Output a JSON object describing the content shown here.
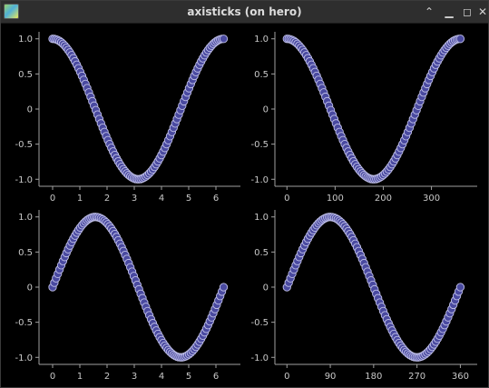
{
  "window": {
    "title": "axisticks (on hero)",
    "icon": "app-icon",
    "controls": [
      "chevron-up-icon",
      "minimize-icon",
      "maximize-icon",
      "close-icon"
    ]
  },
  "colors": {
    "background": "#000000",
    "axis": "#a0a0a0",
    "marker_fill": "#4a4aa0",
    "marker_edge": "#c0c0e8",
    "text": "#c8c8c8"
  },
  "chart_data": [
    {
      "type": "scatter",
      "function": "cos",
      "x_unit": "radians",
      "x_range": [
        0,
        6.2832
      ],
      "n_points": 100,
      "xlim": [
        -0.5,
        6.9
      ],
      "ylim": [
        -1.1,
        1.1
      ],
      "xticks": [
        0,
        1,
        2,
        3,
        4,
        5,
        6
      ],
      "xtick_labels": [
        "0",
        "1",
        "2",
        "3",
        "4",
        "5",
        "6"
      ],
      "yticks": [
        1.0,
        0.5,
        0,
        -0.5,
        -1.0
      ],
      "ytick_labels": [
        "1.0",
        "0.5",
        "0",
        "-0.5",
        "-1.0"
      ]
    },
    {
      "type": "scatter",
      "function": "cos",
      "x_unit": "degrees",
      "x_range": [
        0,
        360
      ],
      "n_points": 100,
      "xlim": [
        -25,
        395
      ],
      "ylim": [
        -1.1,
        1.1
      ],
      "xticks": [
        0,
        100,
        200,
        300
      ],
      "xtick_labels": [
        "0",
        "100",
        "200",
        "300"
      ],
      "yticks": [
        1.0,
        0.5,
        0,
        -0.5,
        -1.0
      ],
      "ytick_labels": [
        "1.0",
        "0.5",
        "0",
        "-0.5",
        "-1.0"
      ]
    },
    {
      "type": "scatter",
      "function": "sin",
      "x_unit": "radians",
      "x_range": [
        0,
        6.2832
      ],
      "n_points": 100,
      "xlim": [
        -0.5,
        6.9
      ],
      "ylim": [
        -1.1,
        1.1
      ],
      "xticks": [
        0,
        1,
        2,
        3,
        4,
        5,
        6
      ],
      "xtick_labels": [
        "0",
        "1",
        "2",
        "3",
        "4",
        "5",
        "6"
      ],
      "yticks": [
        1.0,
        0.5,
        0,
        -0.5,
        -1.0
      ],
      "ytick_labels": [
        "1.0",
        "0.5",
        "0",
        "-0.5",
        "-1.0"
      ]
    },
    {
      "type": "scatter",
      "function": "sin",
      "x_unit": "degrees",
      "x_range": [
        0,
        360
      ],
      "n_points": 100,
      "xlim": [
        -25,
        395
      ],
      "ylim": [
        -1.1,
        1.1
      ],
      "xticks": [
        0,
        90,
        180,
        270,
        360
      ],
      "xtick_labels": [
        "0",
        "90",
        "180",
        "270",
        "360"
      ],
      "yticks": [
        1.0,
        0.5,
        0,
        -0.5,
        -1.0
      ],
      "ytick_labels": [
        "1.0",
        "0.5",
        "0",
        "-0.5",
        "-1.0"
      ]
    }
  ]
}
